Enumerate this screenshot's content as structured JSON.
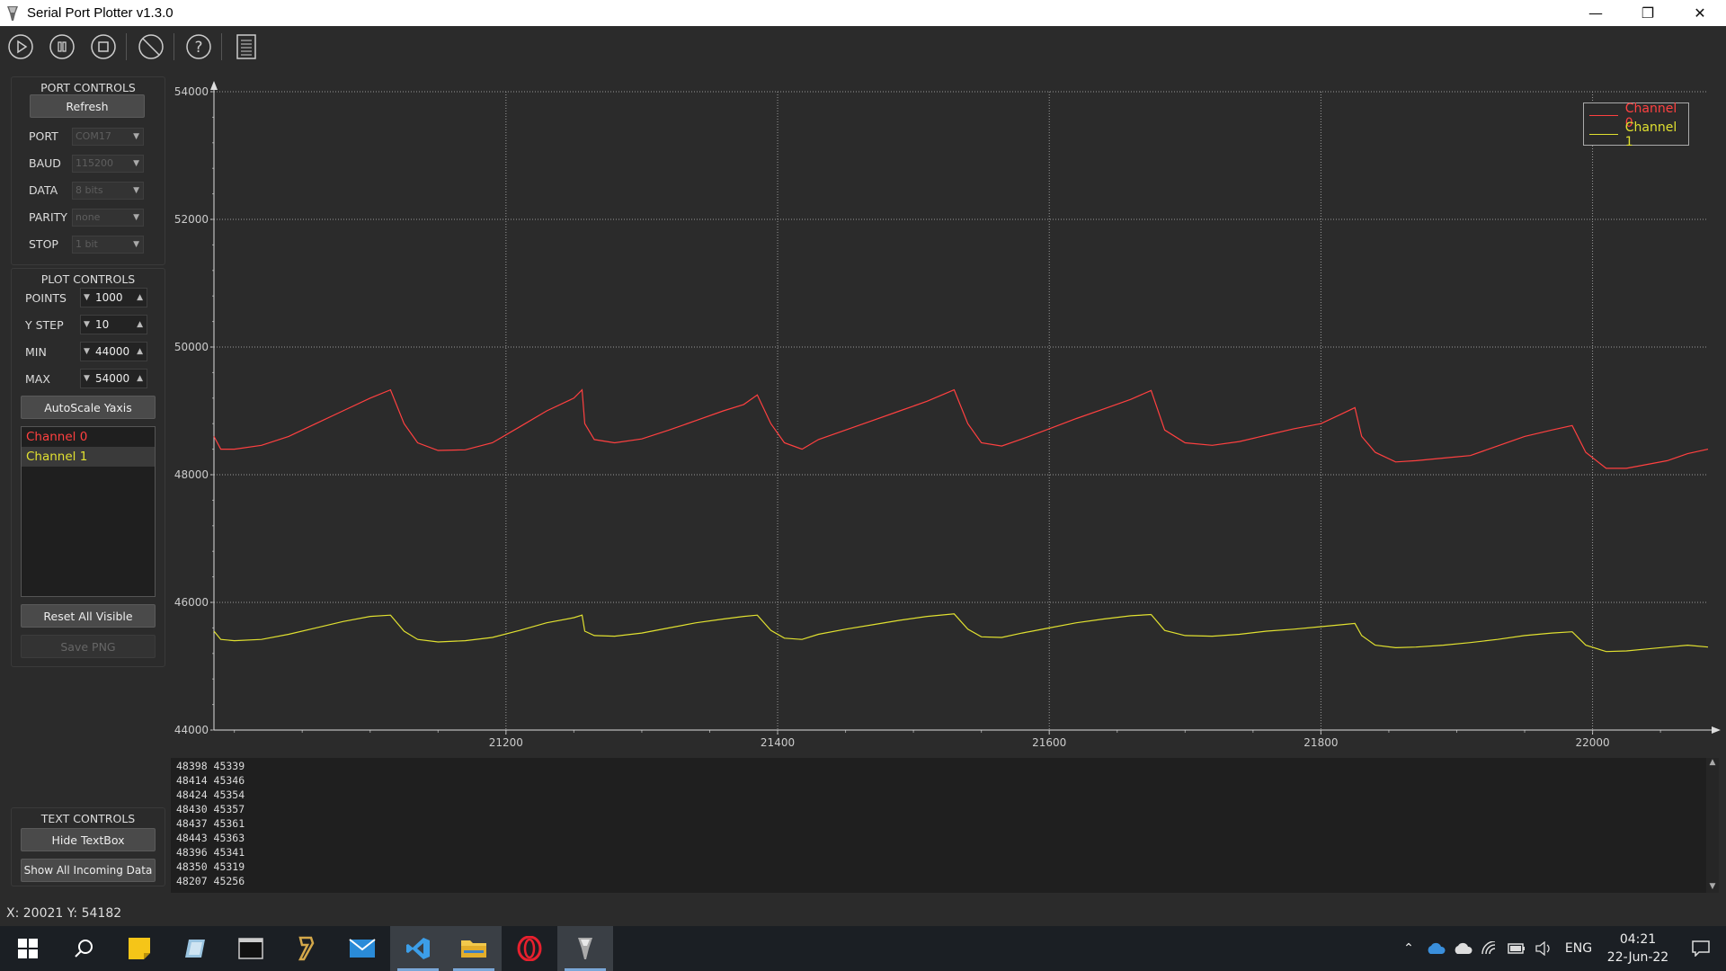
{
  "window": {
    "title": "Serial Port Plotter v1.3.0"
  },
  "toolbar": {
    "buttons": [
      "start",
      "pause",
      "stop",
      "clear",
      "help",
      "log"
    ]
  },
  "port_controls": {
    "title": "PORT CONTROLS",
    "refresh_label": "Refresh",
    "port_label": "PORT",
    "port_value": "COM17",
    "baud_label": "BAUD",
    "baud_value": "115200",
    "data_label": "DATA",
    "data_value": "8 bits",
    "parity_label": "PARITY",
    "parity_value": "none",
    "stop_label": "STOP",
    "stop_value": "1 bit"
  },
  "plot_controls": {
    "title": "PLOT CONTROLS",
    "points_label": "POINTS",
    "points_value": "1000",
    "ystep_label": "Y STEP",
    "ystep_value": "10",
    "min_label": "MIN",
    "min_value": "44000",
    "max_label": "MAX",
    "max_value": "54000",
    "autoscale_label": "AutoScale Yaxis",
    "channels": [
      "Channel 0",
      "Channel 1"
    ],
    "reset_label": "Reset All Visible",
    "save_label": "Save PNG"
  },
  "text_controls": {
    "title": "TEXT CONTROLS",
    "hide_label": "Hide TextBox",
    "show_all_label": "Show All Incoming Data"
  },
  "output_lines": [
    "48398 45339",
    "48414 45346",
    "48424 45354",
    "48430 45357",
    "48437 45361",
    "48443 45363",
    "48396 45341",
    "48350 45319",
    "48207 45256"
  ],
  "status_text": "X: 20021 Y: 54182",
  "taskbar": {
    "lang": "ENG",
    "time": "04:21",
    "date": "22-Jun-22"
  },
  "colors": {
    "channel0": "#ff4040",
    "channel1": "#e0e030",
    "grid": "#9a9a9a"
  },
  "chart_data": {
    "type": "line",
    "xlim": [
      20985,
      22085
    ],
    "ylim": [
      44000,
      54000
    ],
    "x_ticks": [
      21200,
      21400,
      21600,
      21800,
      22000
    ],
    "y_ticks": [
      44000,
      46000,
      48000,
      50000,
      52000,
      54000
    ],
    "legend": "top-right",
    "grid": true,
    "series": [
      {
        "name": "Channel 0",
        "color": "#ff4040",
        "points": [
          [
            20985,
            48600
          ],
          [
            20990,
            48400
          ],
          [
            21000,
            48400
          ],
          [
            21020,
            48460
          ],
          [
            21040,
            48600
          ],
          [
            21060,
            48800
          ],
          [
            21080,
            49000
          ],
          [
            21100,
            49200
          ],
          [
            21115,
            49330
          ],
          [
            21125,
            48800
          ],
          [
            21135,
            48500
          ],
          [
            21150,
            48380
          ],
          [
            21170,
            48390
          ],
          [
            21190,
            48500
          ],
          [
            21210,
            48750
          ],
          [
            21230,
            49000
          ],
          [
            21250,
            49200
          ],
          [
            21256,
            49330
          ],
          [
            21258,
            48800
          ],
          [
            21265,
            48550
          ],
          [
            21280,
            48500
          ],
          [
            21300,
            48560
          ],
          [
            21320,
            48700
          ],
          [
            21340,
            48850
          ],
          [
            21360,
            49000
          ],
          [
            21375,
            49100
          ],
          [
            21385,
            49250
          ],
          [
            21395,
            48800
          ],
          [
            21405,
            48500
          ],
          [
            21418,
            48400
          ],
          [
            21430,
            48550
          ],
          [
            21450,
            48700
          ],
          [
            21470,
            48850
          ],
          [
            21490,
            49000
          ],
          [
            21510,
            49150
          ],
          [
            21530,
            49330
          ],
          [
            21540,
            48800
          ],
          [
            21550,
            48500
          ],
          [
            21565,
            48450
          ],
          [
            21580,
            48560
          ],
          [
            21600,
            48720
          ],
          [
            21620,
            48880
          ],
          [
            21640,
            49030
          ],
          [
            21660,
            49180
          ],
          [
            21675,
            49320
          ],
          [
            21685,
            48700
          ],
          [
            21700,
            48500
          ],
          [
            21720,
            48460
          ],
          [
            21740,
            48520
          ],
          [
            21760,
            48620
          ],
          [
            21780,
            48720
          ],
          [
            21800,
            48800
          ],
          [
            21815,
            48950
          ],
          [
            21825,
            49050
          ],
          [
            21830,
            48600
          ],
          [
            21840,
            48350
          ],
          [
            21855,
            48200
          ],
          [
            21870,
            48220
          ],
          [
            21890,
            48260
          ],
          [
            21910,
            48300
          ],
          [
            21930,
            48450
          ],
          [
            21950,
            48600
          ],
          [
            21970,
            48700
          ],
          [
            21985,
            48770
          ],
          [
            21995,
            48350
          ],
          [
            22010,
            48100
          ],
          [
            22025,
            48100
          ],
          [
            22040,
            48160
          ],
          [
            22055,
            48220
          ],
          [
            22070,
            48330
          ],
          [
            22085,
            48400
          ]
        ]
      },
      {
        "name": "Channel 1",
        "color": "#e0e030",
        "points": [
          [
            20985,
            45550
          ],
          [
            20990,
            45420
          ],
          [
            21000,
            45400
          ],
          [
            21020,
            45420
          ],
          [
            21040,
            45500
          ],
          [
            21060,
            45600
          ],
          [
            21080,
            45700
          ],
          [
            21100,
            45780
          ],
          [
            21115,
            45800
          ],
          [
            21125,
            45550
          ],
          [
            21135,
            45420
          ],
          [
            21150,
            45380
          ],
          [
            21170,
            45400
          ],
          [
            21190,
            45450
          ],
          [
            21210,
            45560
          ],
          [
            21230,
            45680
          ],
          [
            21250,
            45760
          ],
          [
            21256,
            45800
          ],
          [
            21258,
            45550
          ],
          [
            21265,
            45480
          ],
          [
            21280,
            45470
          ],
          [
            21300,
            45520
          ],
          [
            21320,
            45600
          ],
          [
            21340,
            45680
          ],
          [
            21360,
            45740
          ],
          [
            21375,
            45780
          ],
          [
            21385,
            45800
          ],
          [
            21395,
            45560
          ],
          [
            21405,
            45440
          ],
          [
            21418,
            45420
          ],
          [
            21430,
            45500
          ],
          [
            21450,
            45580
          ],
          [
            21470,
            45650
          ],
          [
            21490,
            45720
          ],
          [
            21510,
            45780
          ],
          [
            21530,
            45820
          ],
          [
            21540,
            45580
          ],
          [
            21550,
            45460
          ],
          [
            21565,
            45450
          ],
          [
            21580,
            45520
          ],
          [
            21600,
            45600
          ],
          [
            21620,
            45680
          ],
          [
            21640,
            45740
          ],
          [
            21660,
            45790
          ],
          [
            21675,
            45810
          ],
          [
            21685,
            45560
          ],
          [
            21700,
            45480
          ],
          [
            21720,
            45470
          ],
          [
            21740,
            45500
          ],
          [
            21760,
            45550
          ],
          [
            21780,
            45580
          ],
          [
            21800,
            45620
          ],
          [
            21815,
            45650
          ],
          [
            21825,
            45670
          ],
          [
            21830,
            45480
          ],
          [
            21840,
            45330
          ],
          [
            21855,
            45290
          ],
          [
            21870,
            45300
          ],
          [
            21890,
            45330
          ],
          [
            21910,
            45370
          ],
          [
            21930,
            45420
          ],
          [
            21950,
            45480
          ],
          [
            21970,
            45520
          ],
          [
            21985,
            45540
          ],
          [
            21995,
            45330
          ],
          [
            22010,
            45230
          ],
          [
            22025,
            45240
          ],
          [
            22040,
            45270
          ],
          [
            22055,
            45300
          ],
          [
            22070,
            45330
          ],
          [
            22085,
            45300
          ]
        ]
      }
    ]
  }
}
